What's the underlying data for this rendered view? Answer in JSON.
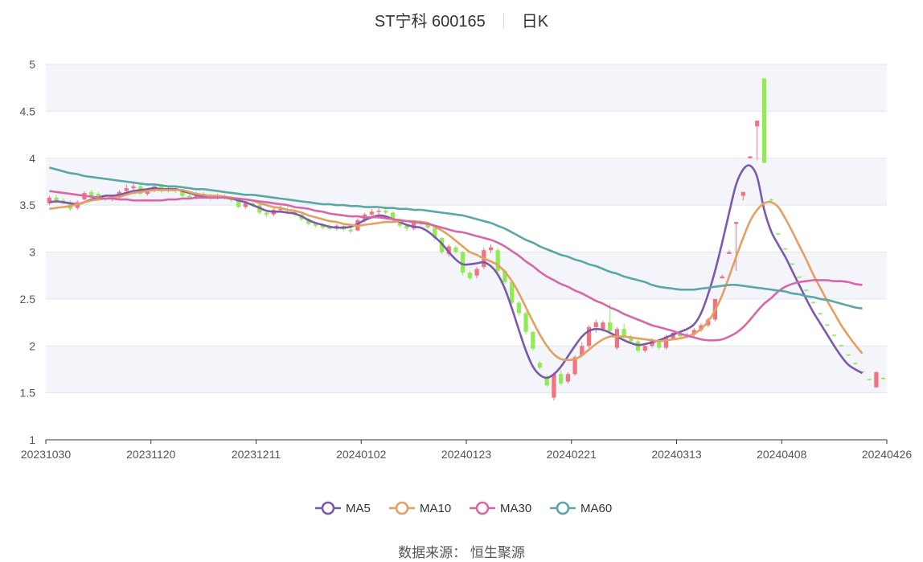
{
  "header": {
    "stock": "ST宁科 600165",
    "period": "日K"
  },
  "source": {
    "label": "数据来源：",
    "value": "恒生聚源"
  },
  "chart_data": {
    "type": "candlestick",
    "title": "ST宁科 600165 日K",
    "ylim": [
      1,
      5
    ],
    "y_ticks": [
      "1",
      "1.5",
      "2",
      "2.5",
      "3",
      "3.5",
      "4",
      "4.5",
      "5"
    ],
    "x_ticks": [
      "20231030",
      "20231120",
      "20231211",
      "20240102",
      "20240123",
      "20240221",
      "20240313",
      "20240408",
      "20240426"
    ],
    "legend_position": "bottom-center",
    "colors": {
      "up": "#f2727f",
      "down": "#91eb53",
      "MA5": "#7c5aab",
      "MA10": "#e4a060",
      "MA30": "#d767a9",
      "MA60": "#5aa7a5",
      "grid_band": "#f3f5fa"
    },
    "candles": [
      {
        "o": 3.52,
        "c": 3.58,
        "h": 3.6,
        "l": 3.5
      },
      {
        "o": 3.58,
        "c": 3.54,
        "h": 3.61,
        "l": 3.52
      },
      {
        "o": 3.55,
        "c": 3.53,
        "h": 3.57,
        "l": 3.51
      },
      {
        "o": 3.53,
        "c": 3.46,
        "h": 3.55,
        "l": 3.44
      },
      {
        "o": 3.47,
        "c": 3.53,
        "h": 3.55,
        "l": 3.45
      },
      {
        "o": 3.56,
        "c": 3.63,
        "h": 3.65,
        "l": 3.55
      },
      {
        "o": 3.64,
        "c": 3.6,
        "h": 3.66,
        "l": 3.58
      },
      {
        "o": 3.62,
        "c": 3.58,
        "h": 3.64,
        "l": 3.56
      },
      {
        "o": 3.58,
        "c": 3.56,
        "h": 3.6,
        "l": 3.54
      },
      {
        "o": 3.56,
        "c": 3.58,
        "h": 3.6,
        "l": 3.54
      },
      {
        "o": 3.58,
        "c": 3.64,
        "h": 3.66,
        "l": 3.57
      },
      {
        "o": 3.65,
        "c": 3.68,
        "h": 3.72,
        "l": 3.63
      },
      {
        "o": 3.68,
        "c": 3.7,
        "h": 3.74,
        "l": 3.66
      },
      {
        "o": 3.7,
        "c": 3.62,
        "h": 3.72,
        "l": 3.61
      },
      {
        "o": 3.62,
        "c": 3.66,
        "h": 3.68,
        "l": 3.6
      },
      {
        "o": 3.66,
        "c": 3.7,
        "h": 3.73,
        "l": 3.64
      },
      {
        "o": 3.7,
        "c": 3.65,
        "h": 3.72,
        "l": 3.63
      },
      {
        "o": 3.66,
        "c": 3.68,
        "h": 3.7,
        "l": 3.64
      },
      {
        "o": 3.68,
        "c": 3.65,
        "h": 3.7,
        "l": 3.63
      },
      {
        "o": 3.66,
        "c": 3.6,
        "h": 3.67,
        "l": 3.58
      },
      {
        "o": 3.6,
        "c": 3.58,
        "h": 3.62,
        "l": 3.56
      },
      {
        "o": 3.58,
        "c": 3.62,
        "h": 3.64,
        "l": 3.56
      },
      {
        "o": 3.62,
        "c": 3.6,
        "h": 3.64,
        "l": 3.58
      },
      {
        "o": 3.6,
        "c": 3.58,
        "h": 3.62,
        "l": 3.55
      },
      {
        "o": 3.58,
        "c": 3.6,
        "h": 3.62,
        "l": 3.56
      },
      {
        "o": 3.6,
        "c": 3.58,
        "h": 3.62,
        "l": 3.56
      },
      {
        "o": 3.58,
        "c": 3.55,
        "h": 3.6,
        "l": 3.53
      },
      {
        "o": 3.55,
        "c": 3.48,
        "h": 3.56,
        "l": 3.47
      },
      {
        "o": 3.48,
        "c": 3.52,
        "h": 3.54,
        "l": 3.46
      },
      {
        "o": 3.52,
        "c": 3.5,
        "h": 3.54,
        "l": 3.48
      },
      {
        "o": 3.5,
        "c": 3.42,
        "h": 3.51,
        "l": 3.4
      },
      {
        "o": 3.42,
        "c": 3.4,
        "h": 3.45,
        "l": 3.37
      },
      {
        "o": 3.4,
        "c": 3.45,
        "h": 3.47,
        "l": 3.38
      },
      {
        "o": 3.45,
        "c": 3.46,
        "h": 3.5,
        "l": 3.42
      },
      {
        "o": 3.46,
        "c": 3.44,
        "h": 3.5,
        "l": 3.42
      },
      {
        "o": 3.44,
        "c": 3.4,
        "h": 3.46,
        "l": 3.38
      },
      {
        "o": 3.4,
        "c": 3.35,
        "h": 3.42,
        "l": 3.33
      },
      {
        "o": 3.35,
        "c": 3.3,
        "h": 3.36,
        "l": 3.28
      },
      {
        "o": 3.3,
        "c": 3.28,
        "h": 3.32,
        "l": 3.26
      },
      {
        "o": 3.28,
        "c": 3.26,
        "h": 3.3,
        "l": 3.24
      },
      {
        "o": 3.26,
        "c": 3.25,
        "h": 3.3,
        "l": 3.23
      },
      {
        "o": 3.25,
        "c": 3.28,
        "h": 3.3,
        "l": 3.23
      },
      {
        "o": 3.28,
        "c": 3.24,
        "h": 3.3,
        "l": 3.22
      },
      {
        "o": 3.24,
        "c": 3.22,
        "h": 3.26,
        "l": 3.2
      },
      {
        "o": 3.23,
        "c": 3.34,
        "h": 3.36,
        "l": 3.22
      },
      {
        "o": 3.34,
        "c": 3.4,
        "h": 3.42,
        "l": 3.32
      },
      {
        "o": 3.4,
        "c": 3.43,
        "h": 3.46,
        "l": 3.38
      },
      {
        "o": 3.43,
        "c": 3.44,
        "h": 3.48,
        "l": 3.4
      },
      {
        "o": 3.44,
        "c": 3.42,
        "h": 3.46,
        "l": 3.4
      },
      {
        "o": 3.42,
        "c": 3.35,
        "h": 3.43,
        "l": 3.33
      },
      {
        "o": 3.35,
        "c": 3.28,
        "h": 3.36,
        "l": 3.26
      },
      {
        "o": 3.28,
        "c": 3.25,
        "h": 3.3,
        "l": 3.22
      },
      {
        "o": 3.25,
        "c": 3.32,
        "h": 3.34,
        "l": 3.23
      },
      {
        "o": 3.32,
        "c": 3.3,
        "h": 3.34,
        "l": 3.28
      },
      {
        "o": 3.3,
        "c": 3.26,
        "h": 3.32,
        "l": 3.24
      },
      {
        "o": 3.26,
        "c": 3.15,
        "h": 3.27,
        "l": 3.12
      },
      {
        "o": 3.15,
        "c": 3.0,
        "h": 3.16,
        "l": 2.98
      },
      {
        "o": 2.98,
        "c": 3.06,
        "h": 3.08,
        "l": 2.95
      },
      {
        "o": 3.05,
        "c": 3.0,
        "h": 3.07,
        "l": 2.98
      },
      {
        "o": 3.0,
        "c": 2.78,
        "h": 3.01,
        "l": 2.75
      },
      {
        "o": 2.78,
        "c": 2.72,
        "h": 2.8,
        "l": 2.7
      },
      {
        "o": 2.75,
        "c": 2.82,
        "h": 2.84,
        "l": 2.72
      },
      {
        "o": 2.84,
        "c": 3.02,
        "h": 3.05,
        "l": 2.82
      },
      {
        "o": 3.02,
        "c": 3.05,
        "h": 3.08,
        "l": 2.99
      },
      {
        "o": 3.02,
        "c": 2.8,
        "h": 3.04,
        "l": 2.78
      },
      {
        "o": 2.8,
        "c": 2.68,
        "h": 2.82,
        "l": 2.66
      },
      {
        "o": 2.68,
        "c": 2.46,
        "h": 2.7,
        "l": 2.44
      },
      {
        "o": 2.46,
        "c": 2.35,
        "h": 2.48,
        "l": 2.32
      },
      {
        "o": 2.35,
        "c": 2.15,
        "h": 2.37,
        "l": 2.12
      },
      {
        "o": 2.15,
        "c": 1.97,
        "h": 2.16,
        "l": 1.95
      },
      {
        "o": 1.82,
        "c": 1.77,
        "h": 1.84,
        "l": 1.75
      },
      {
        "o": 1.67,
        "c": 1.58,
        "h": 1.69,
        "l": 1.56
      },
      {
        "o": 1.45,
        "c": 1.7,
        "h": 1.72,
        "l": 1.42
      },
      {
        "o": 1.7,
        "c": 1.6,
        "h": 1.74,
        "l": 1.58
      },
      {
        "o": 1.62,
        "c": 1.7,
        "h": 1.72,
        "l": 1.6
      },
      {
        "o": 1.7,
        "c": 1.88,
        "h": 1.9,
        "l": 1.68
      },
      {
        "o": 1.9,
        "c": 2.0,
        "h": 2.04,
        "l": 1.88
      },
      {
        "o": 2.0,
        "c": 2.2,
        "h": 2.22,
        "l": 1.98
      },
      {
        "o": 2.2,
        "c": 2.25,
        "h": 2.28,
        "l": 2.14
      },
      {
        "o": 2.18,
        "c": 2.25,
        "h": 2.27,
        "l": 2.15
      },
      {
        "o": 2.25,
        "c": 2.16,
        "h": 2.45,
        "l": 2.12
      },
      {
        "o": 1.98,
        "c": 2.18,
        "h": 2.2,
        "l": 1.96
      },
      {
        "o": 2.18,
        "c": 2.1,
        "h": 2.24,
        "l": 2.06
      },
      {
        "o": 2.1,
        "c": 2.05,
        "h": 2.12,
        "l": 2.02
      },
      {
        "o": 2.05,
        "c": 1.95,
        "h": 2.08,
        "l": 1.93
      },
      {
        "o": 1.95,
        "c": 2.0,
        "h": 2.02,
        "l": 1.93
      },
      {
        "o": 2.0,
        "c": 2.05,
        "h": 2.08,
        "l": 1.98
      },
      {
        "o": 2.04,
        "c": 1.98,
        "h": 2.06,
        "l": 1.96
      },
      {
        "o": 1.98,
        "c": 2.1,
        "h": 2.12,
        "l": 1.96
      },
      {
        "o": 2.08,
        "c": 2.14,
        "h": 2.16,
        "l": 2.06
      },
      {
        "o": 2.14,
        "c": 2.1,
        "h": 2.16,
        "l": 2.07
      },
      {
        "o": 2.1,
        "c": 2.12,
        "h": 2.14,
        "l": 2.08
      },
      {
        "o": 2.12,
        "c": 2.17,
        "h": 2.19,
        "l": 2.1
      },
      {
        "o": 2.17,
        "c": 2.22,
        "h": 2.24,
        "l": 2.15
      },
      {
        "o": 2.22,
        "c": 2.28,
        "h": 2.3,
        "l": 2.2
      },
      {
        "o": 2.28,
        "c": 2.5,
        "h": 2.5,
        "l": 2.26
      },
      {
        "o": 2.72,
        "c": 2.74,
        "h": 2.76,
        "l": 2.72
      },
      {
        "o": 2.98,
        "c": 3.0,
        "h": 3.02,
        "l": 2.98
      },
      {
        "o": 3.3,
        "c": 3.32,
        "h": 3.32,
        "l": 2.8
      },
      {
        "o": 3.6,
        "c": 3.64,
        "h": 3.64,
        "l": 3.55
      },
      {
        "o": 4.0,
        "c": 4.02,
        "h": 4.02,
        "l": 4.0
      },
      {
        "o": 4.34,
        "c": 4.4,
        "h": 4.4,
        "l": 3.98
      },
      {
        "o": 4.85,
        "c": 3.95,
        "h": 4.85,
        "l": 3.95
      },
      {
        "o": 3.56,
        "c": 3.55,
        "h": 3.57,
        "l": 3.54
      },
      {
        "o": 3.2,
        "c": 3.19,
        "h": 3.2,
        "l": 3.18
      },
      {
        "o": 3.04,
        "c": 3.03,
        "h": 3.04,
        "l": 3.02
      },
      {
        "o": 2.88,
        "c": 2.87,
        "h": 2.88,
        "l": 2.86
      },
      {
        "o": 2.74,
        "c": 2.73,
        "h": 2.74,
        "l": 2.72
      },
      {
        "o": 2.6,
        "c": 2.59,
        "h": 2.6,
        "l": 2.58
      },
      {
        "o": 2.47,
        "c": 2.46,
        "h": 2.47,
        "l": 2.45
      },
      {
        "o": 2.35,
        "c": 2.34,
        "h": 2.35,
        "l": 2.33
      },
      {
        "o": 2.23,
        "c": 2.22,
        "h": 2.23,
        "l": 2.21
      },
      {
        "o": 2.12,
        "c": 2.11,
        "h": 2.12,
        "l": 2.1
      },
      {
        "o": 2.01,
        "c": 2.0,
        "h": 2.01,
        "l": 1.99
      },
      {
        "o": 1.91,
        "c": 1.9,
        "h": 1.91,
        "l": 1.89
      },
      {
        "o": 1.82,
        "c": 1.81,
        "h": 1.82,
        "l": 1.8
      },
      {
        "o": 1.73,
        "c": 1.72,
        "h": 1.73,
        "l": 1.71
      },
      {
        "o": 1.65,
        "c": 1.64,
        "h": 1.65,
        "l": 1.63
      },
      {
        "o": 1.56,
        "c": 1.72,
        "h": 1.73,
        "l": 1.55
      },
      {
        "o": 1.66,
        "c": 1.65,
        "h": 1.67,
        "l": 1.64
      }
    ],
    "series": [
      {
        "name": "MA5",
        "values": [
          3.53,
          3.54,
          3.53,
          3.52,
          3.51,
          3.53,
          3.56,
          3.58,
          3.6,
          3.6,
          3.61,
          3.63,
          3.65,
          3.66,
          3.67,
          3.68,
          3.67,
          3.67,
          3.67,
          3.65,
          3.63,
          3.61,
          3.6,
          3.6,
          3.59,
          3.58,
          3.57,
          3.55,
          3.53,
          3.5,
          3.47,
          3.44,
          3.43,
          3.43,
          3.42,
          3.41,
          3.38,
          3.34,
          3.31,
          3.29,
          3.27,
          3.26,
          3.26,
          3.27,
          3.3,
          3.34,
          3.37,
          3.39,
          3.38,
          3.35,
          3.32,
          3.29,
          3.27,
          3.26,
          3.22,
          3.16,
          3.09,
          3.0,
          2.92,
          2.87,
          2.87,
          2.88,
          2.89,
          2.85,
          2.76,
          2.61,
          2.4,
          2.17,
          1.95,
          1.78,
          1.69,
          1.66,
          1.7,
          1.78,
          1.89,
          2.0,
          2.1,
          2.16,
          2.18,
          2.17,
          2.14,
          2.1,
          2.06,
          2.03,
          2.01,
          2.02,
          2.04,
          2.06,
          2.09,
          2.12,
          2.15,
          2.18,
          2.23,
          2.35,
          2.55,
          2.8,
          3.1,
          3.42,
          3.72,
          3.88,
          3.92,
          3.8,
          3.45,
          3.22,
          3.08,
          2.95,
          2.8,
          2.65,
          2.5,
          2.36,
          2.24,
          2.12,
          2.0,
          1.89,
          1.8,
          1.75,
          1.71
        ]
      },
      {
        "name": "MA10",
        "values": [
          3.46,
          3.47,
          3.48,
          3.49,
          3.51,
          3.53,
          3.55,
          3.56,
          3.57,
          3.58,
          3.59,
          3.61,
          3.63,
          3.64,
          3.65,
          3.66,
          3.66,
          3.66,
          3.66,
          3.66,
          3.64,
          3.62,
          3.61,
          3.6,
          3.6,
          3.59,
          3.58,
          3.57,
          3.56,
          3.55,
          3.52,
          3.5,
          3.48,
          3.47,
          3.45,
          3.44,
          3.42,
          3.39,
          3.37,
          3.35,
          3.33,
          3.32,
          3.3,
          3.29,
          3.28,
          3.29,
          3.3,
          3.31,
          3.32,
          3.32,
          3.33,
          3.33,
          3.33,
          3.32,
          3.31,
          3.27,
          3.23,
          3.18,
          3.12,
          3.06,
          3.0,
          2.97,
          2.93,
          2.9,
          2.86,
          2.79,
          2.69,
          2.56,
          2.41,
          2.26,
          2.12,
          2.0,
          1.91,
          1.86,
          1.85,
          1.86,
          1.9,
          1.96,
          2.02,
          2.07,
          2.1,
          2.1,
          2.1,
          2.09,
          2.08,
          2.07,
          2.06,
          2.05,
          2.06,
          2.07,
          2.08,
          2.1,
          2.13,
          2.18,
          2.26,
          2.38,
          2.54,
          2.74,
          2.95,
          3.15,
          3.33,
          3.45,
          3.52,
          3.53,
          3.48,
          3.36,
          3.22,
          3.07,
          2.92,
          2.76,
          2.62,
          2.48,
          2.35,
          2.22,
          2.11,
          2.01,
          1.92
        ]
      },
      {
        "name": "MA30",
        "values": [
          3.65,
          3.64,
          3.63,
          3.62,
          3.61,
          3.6,
          3.59,
          3.58,
          3.57,
          3.57,
          3.56,
          3.56,
          3.55,
          3.55,
          3.55,
          3.55,
          3.55,
          3.56,
          3.56,
          3.57,
          3.57,
          3.58,
          3.58,
          3.58,
          3.58,
          3.58,
          3.57,
          3.57,
          3.56,
          3.55,
          3.54,
          3.53,
          3.52,
          3.51,
          3.5,
          3.48,
          3.47,
          3.46,
          3.44,
          3.43,
          3.41,
          3.4,
          3.39,
          3.38,
          3.38,
          3.37,
          3.37,
          3.37,
          3.36,
          3.35,
          3.34,
          3.33,
          3.32,
          3.31,
          3.3,
          3.28,
          3.26,
          3.24,
          3.22,
          3.21,
          3.19,
          3.17,
          3.15,
          3.13,
          3.1,
          3.06,
          3.01,
          2.96,
          2.9,
          2.85,
          2.79,
          2.74,
          2.7,
          2.66,
          2.63,
          2.59,
          2.56,
          2.52,
          2.48,
          2.45,
          2.41,
          2.38,
          2.34,
          2.31,
          2.28,
          2.25,
          2.22,
          2.2,
          2.18,
          2.16,
          2.13,
          2.11,
          2.09,
          2.07,
          2.06,
          2.06,
          2.07,
          2.1,
          2.14,
          2.2,
          2.28,
          2.37,
          2.45,
          2.51,
          2.58,
          2.63,
          2.66,
          2.68,
          2.69,
          2.7,
          2.7,
          2.7,
          2.69,
          2.69,
          2.68,
          2.66,
          2.65
        ]
      },
      {
        "name": "MA60",
        "values": [
          3.9,
          3.88,
          3.86,
          3.84,
          3.83,
          3.81,
          3.8,
          3.79,
          3.78,
          3.77,
          3.76,
          3.75,
          3.74,
          3.73,
          3.72,
          3.72,
          3.71,
          3.7,
          3.7,
          3.69,
          3.68,
          3.67,
          3.67,
          3.66,
          3.65,
          3.64,
          3.63,
          3.62,
          3.61,
          3.61,
          3.6,
          3.59,
          3.58,
          3.57,
          3.56,
          3.55,
          3.54,
          3.53,
          3.52,
          3.51,
          3.51,
          3.5,
          3.5,
          3.49,
          3.49,
          3.48,
          3.48,
          3.48,
          3.47,
          3.47,
          3.46,
          3.46,
          3.45,
          3.45,
          3.44,
          3.43,
          3.42,
          3.41,
          3.4,
          3.39,
          3.37,
          3.35,
          3.33,
          3.31,
          3.28,
          3.25,
          3.21,
          3.17,
          3.13,
          3.1,
          3.06,
          3.03,
          3.0,
          2.97,
          2.95,
          2.92,
          2.9,
          2.87,
          2.85,
          2.82,
          2.79,
          2.77,
          2.74,
          2.72,
          2.7,
          2.68,
          2.65,
          2.63,
          2.62,
          2.61,
          2.6,
          2.6,
          2.6,
          2.61,
          2.62,
          2.63,
          2.64,
          2.65,
          2.65,
          2.64,
          2.63,
          2.62,
          2.61,
          2.6,
          2.59,
          2.58,
          2.56,
          2.55,
          2.53,
          2.52,
          2.5,
          2.49,
          2.47,
          2.45,
          2.43,
          2.41,
          2.4
        ]
      }
    ]
  }
}
